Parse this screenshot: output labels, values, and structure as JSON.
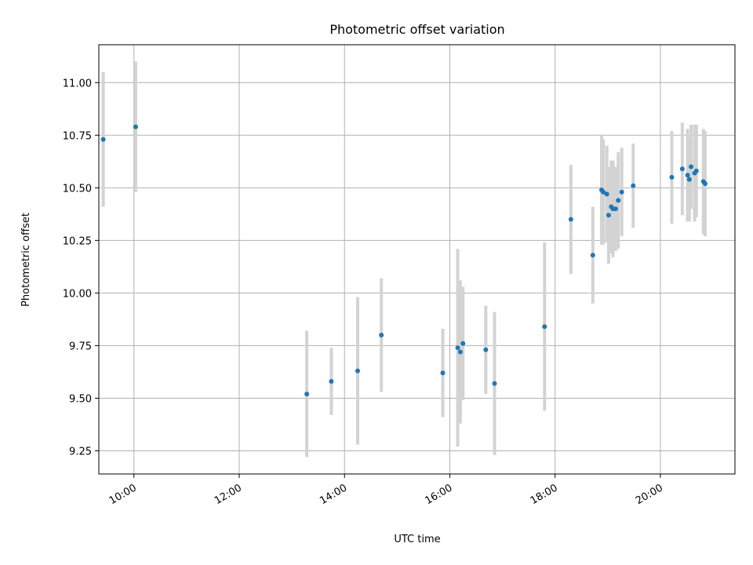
{
  "chart_data": {
    "type": "scatter",
    "title": "Photometric offset variation",
    "xlabel": "UTC time",
    "ylabel": "Photometric offset",
    "xlim": [
      "09:20",
      "21:25"
    ],
    "ylim": [
      9.14,
      11.18
    ],
    "grid": true,
    "x_ticks": [
      "10:00",
      "12:00",
      "14:00",
      "16:00",
      "18:00",
      "20:00"
    ],
    "y_ticks": [
      "9.25",
      "9.50",
      "9.75",
      "10.00",
      "10.25",
      "10.50",
      "10.75",
      "11.00"
    ],
    "marker_color": "#1f77b4",
    "errorbar_color": "#d3d3d3",
    "series": [
      {
        "points": [
          {
            "x": "09:25",
            "y": 10.73,
            "yerr": 0.32
          },
          {
            "x": "10:02",
            "y": 10.79,
            "yerr": 0.31
          },
          {
            "x": "13:17",
            "y": 9.52,
            "yerr": 0.3
          },
          {
            "x": "13:45",
            "y": 9.58,
            "yerr": 0.16
          },
          {
            "x": "14:15",
            "y": 9.63,
            "yerr": 0.35
          },
          {
            "x": "14:42",
            "y": 9.8,
            "yerr": 0.27
          },
          {
            "x": "15:52",
            "y": 9.62,
            "yerr": 0.21
          },
          {
            "x": "16:09",
            "y": 9.74,
            "yerr": 0.47
          },
          {
            "x": "16:12",
            "y": 9.72,
            "yerr": 0.34
          },
          {
            "x": "16:15",
            "y": 9.76,
            "yerr": 0.27
          },
          {
            "x": "16:41",
            "y": 9.73,
            "yerr": 0.21
          },
          {
            "x": "16:51",
            "y": 9.57,
            "yerr": 0.34
          },
          {
            "x": "17:48",
            "y": 9.84,
            "yerr": 0.4
          },
          {
            "x": "18:18",
            "y": 10.35,
            "yerr": 0.26
          },
          {
            "x": "18:43",
            "y": 10.18,
            "yerr": 0.23
          },
          {
            "x": "18:53",
            "y": 10.49,
            "yerr": 0.26
          },
          {
            "x": "18:55",
            "y": 10.48,
            "yerr": 0.25
          },
          {
            "x": "18:59",
            "y": 10.47,
            "yerr": 0.23
          },
          {
            "x": "19:01",
            "y": 10.37,
            "yerr": 0.23
          },
          {
            "x": "19:04",
            "y": 10.41,
            "yerr": 0.22
          },
          {
            "x": "19:06",
            "y": 10.4,
            "yerr": 0.23
          },
          {
            "x": "19:09",
            "y": 10.4,
            "yerr": 0.2
          },
          {
            "x": "19:12",
            "y": 10.44,
            "yerr": 0.23
          },
          {
            "x": "19:16",
            "y": 10.48,
            "yerr": 0.21
          },
          {
            "x": "19:29",
            "y": 10.51,
            "yerr": 0.2
          },
          {
            "x": "20:13",
            "y": 10.55,
            "yerr": 0.22
          },
          {
            "x": "20:25",
            "y": 10.59,
            "yerr": 0.22
          },
          {
            "x": "20:31",
            "y": 10.56,
            "yerr": 0.22
          },
          {
            "x": "20:33",
            "y": 10.54,
            "yerr": 0.2
          },
          {
            "x": "20:35",
            "y": 10.6,
            "yerr": 0.2
          },
          {
            "x": "20:39",
            "y": 10.57,
            "yerr": 0.23
          },
          {
            "x": "20:41",
            "y": 10.58,
            "yerr": 0.22
          },
          {
            "x": "20:49",
            "y": 10.53,
            "yerr": 0.25
          },
          {
            "x": "20:51",
            "y": 10.52,
            "yerr": 0.25
          }
        ]
      }
    ]
  }
}
